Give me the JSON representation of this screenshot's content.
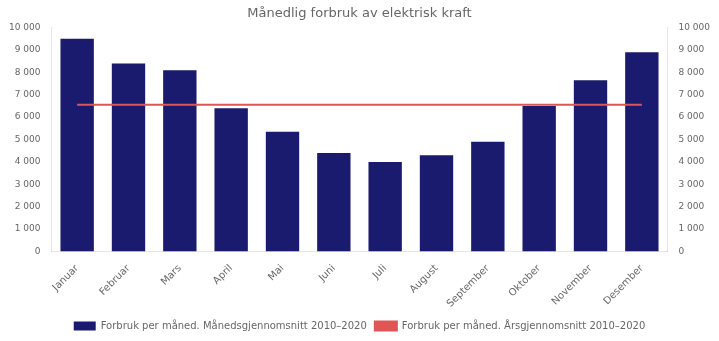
{
  "chart_data": {
    "type": "bar",
    "title": "Månedlig forbruk av elektrisk kraft",
    "categories": [
      "Januar",
      "Februar",
      "Mars",
      "April",
      "Mai",
      "Juni",
      "Juli",
      "August",
      "September",
      "Oktober",
      "November",
      "Desember"
    ],
    "series": [
      {
        "name": "Forbruk per måned. Månedsgjennomsnitt 2010–2020",
        "type": "bar",
        "color": "#1a1a6e",
        "values": [
          9500,
          8400,
          8100,
          6400,
          5350,
          4400,
          4000,
          4300,
          4900,
          6500,
          7650,
          8900
        ]
      },
      {
        "name": "Forbruk per måned. Årsgjennomsnitt 2010–2020",
        "type": "line",
        "color": "#e05555",
        "values": [
          6550,
          6550,
          6550,
          6550,
          6550,
          6550,
          6550,
          6550,
          6550,
          6550,
          6550,
          6550
        ]
      }
    ],
    "ylim": [
      0,
      10000
    ],
    "yticks": [
      0,
      {
        "value": 1000,
        "label": "1 000"
      },
      {
        "value": 2000,
        "label": "2 000"
      },
      {
        "value": 3000,
        "label": "3 000"
      },
      {
        "value": 4000,
        "label": "4 000"
      },
      {
        "value": 5000,
        "label": "5 000"
      },
      {
        "value": 6000,
        "label": "6 000"
      },
      {
        "value": 7000,
        "label": "7 000"
      },
      {
        "value": 8000,
        "label": "8 000"
      },
      {
        "value": 9000,
        "label": "9 000"
      },
      {
        "value": 10000,
        "label": "10 000"
      }
    ],
    "y2lim": [
      0,
      10000
    ],
    "y2ticks": [
      0,
      {
        "value": 1000,
        "label": "1 000"
      },
      {
        "value": 2000,
        "label": "2 000"
      },
      {
        "value": 3000,
        "label": "3 000"
      },
      {
        "value": 4000,
        "label": "4 000"
      },
      {
        "value": 5000,
        "label": "5 000"
      },
      {
        "value": 6000,
        "label": "6 000"
      },
      {
        "value": 7000,
        "label": "7 000"
      },
      {
        "value": 8000,
        "label": "8 000"
      },
      {
        "value": 9000,
        "label": "9 000"
      },
      {
        "value": 10000,
        "label": "10 000"
      }
    ],
    "grid": false,
    "legend": "bottom"
  }
}
